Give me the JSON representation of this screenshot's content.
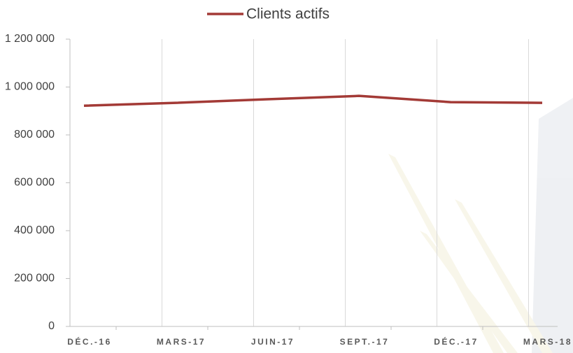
{
  "chart_data": {
    "type": "line",
    "categories": [
      "DÉC.-16",
      "MARS-17",
      "JUIN-17",
      "SEPT.-17",
      "DÉC.-17",
      "MARS-18"
    ],
    "series": [
      {
        "name": "Clients actifs",
        "color": "#a33a36",
        "values": [
          922000,
          934000,
          949000,
          963000,
          937000,
          934000
        ]
      }
    ],
    "ylim": [
      0,
      1200000
    ],
    "yticks": [
      0,
      {
        "value": 200000,
        "label": "200 000"
      },
      {
        "value": 400000,
        "label": "400 000"
      },
      {
        "value": 600000,
        "label": "600 000"
      },
      {
        "value": 800000,
        "label": "800 000"
      },
      {
        "value": 1000000,
        "label": "1 000 000"
      },
      {
        "value": 1200000,
        "label": "1 200 000"
      }
    ],
    "grid": true,
    "legend": "top"
  }
}
